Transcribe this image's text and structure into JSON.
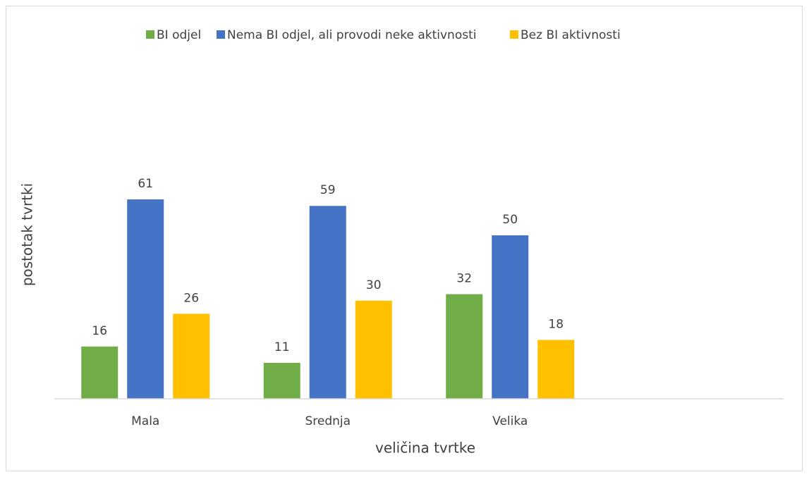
{
  "chart_data": {
    "type": "bar",
    "x_label": "veličina tvrtke",
    "y_label": "postotak tvrtki",
    "categories": [
      "Mala",
      "Srednja",
      "Velika",
      null
    ],
    "series": [
      {
        "name": "BI odjel",
        "color": "#70ad47",
        "values": [
          16,
          11,
          32,
          null
        ]
      },
      {
        "name": "Nema BI odjel, ali provodi neke aktivnosti",
        "color": "#4472c4",
        "values": [
          61,
          59,
          50,
          null
        ]
      },
      {
        "name": "Bez BI aktivnosti",
        "color": "#ffc000",
        "values": [
          26,
          30,
          18,
          null
        ]
      }
    ],
    "ylim": [
      0,
      100
    ],
    "legend": "top"
  }
}
